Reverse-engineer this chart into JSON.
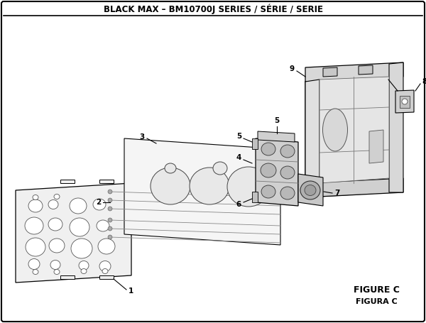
{
  "title": "BLACK MAX – BM10700J SERIES / SÉRIE / SERIE",
  "figure_label": "FIGURE C",
  "figura_label": "FIGURA C",
  "bg_color": "#ffffff",
  "border_color": "#000000",
  "text_color": "#000000",
  "title_fontsize": 8.5,
  "fig_width": 6.0,
  "fig_height": 4.55,
  "dpi": 100
}
